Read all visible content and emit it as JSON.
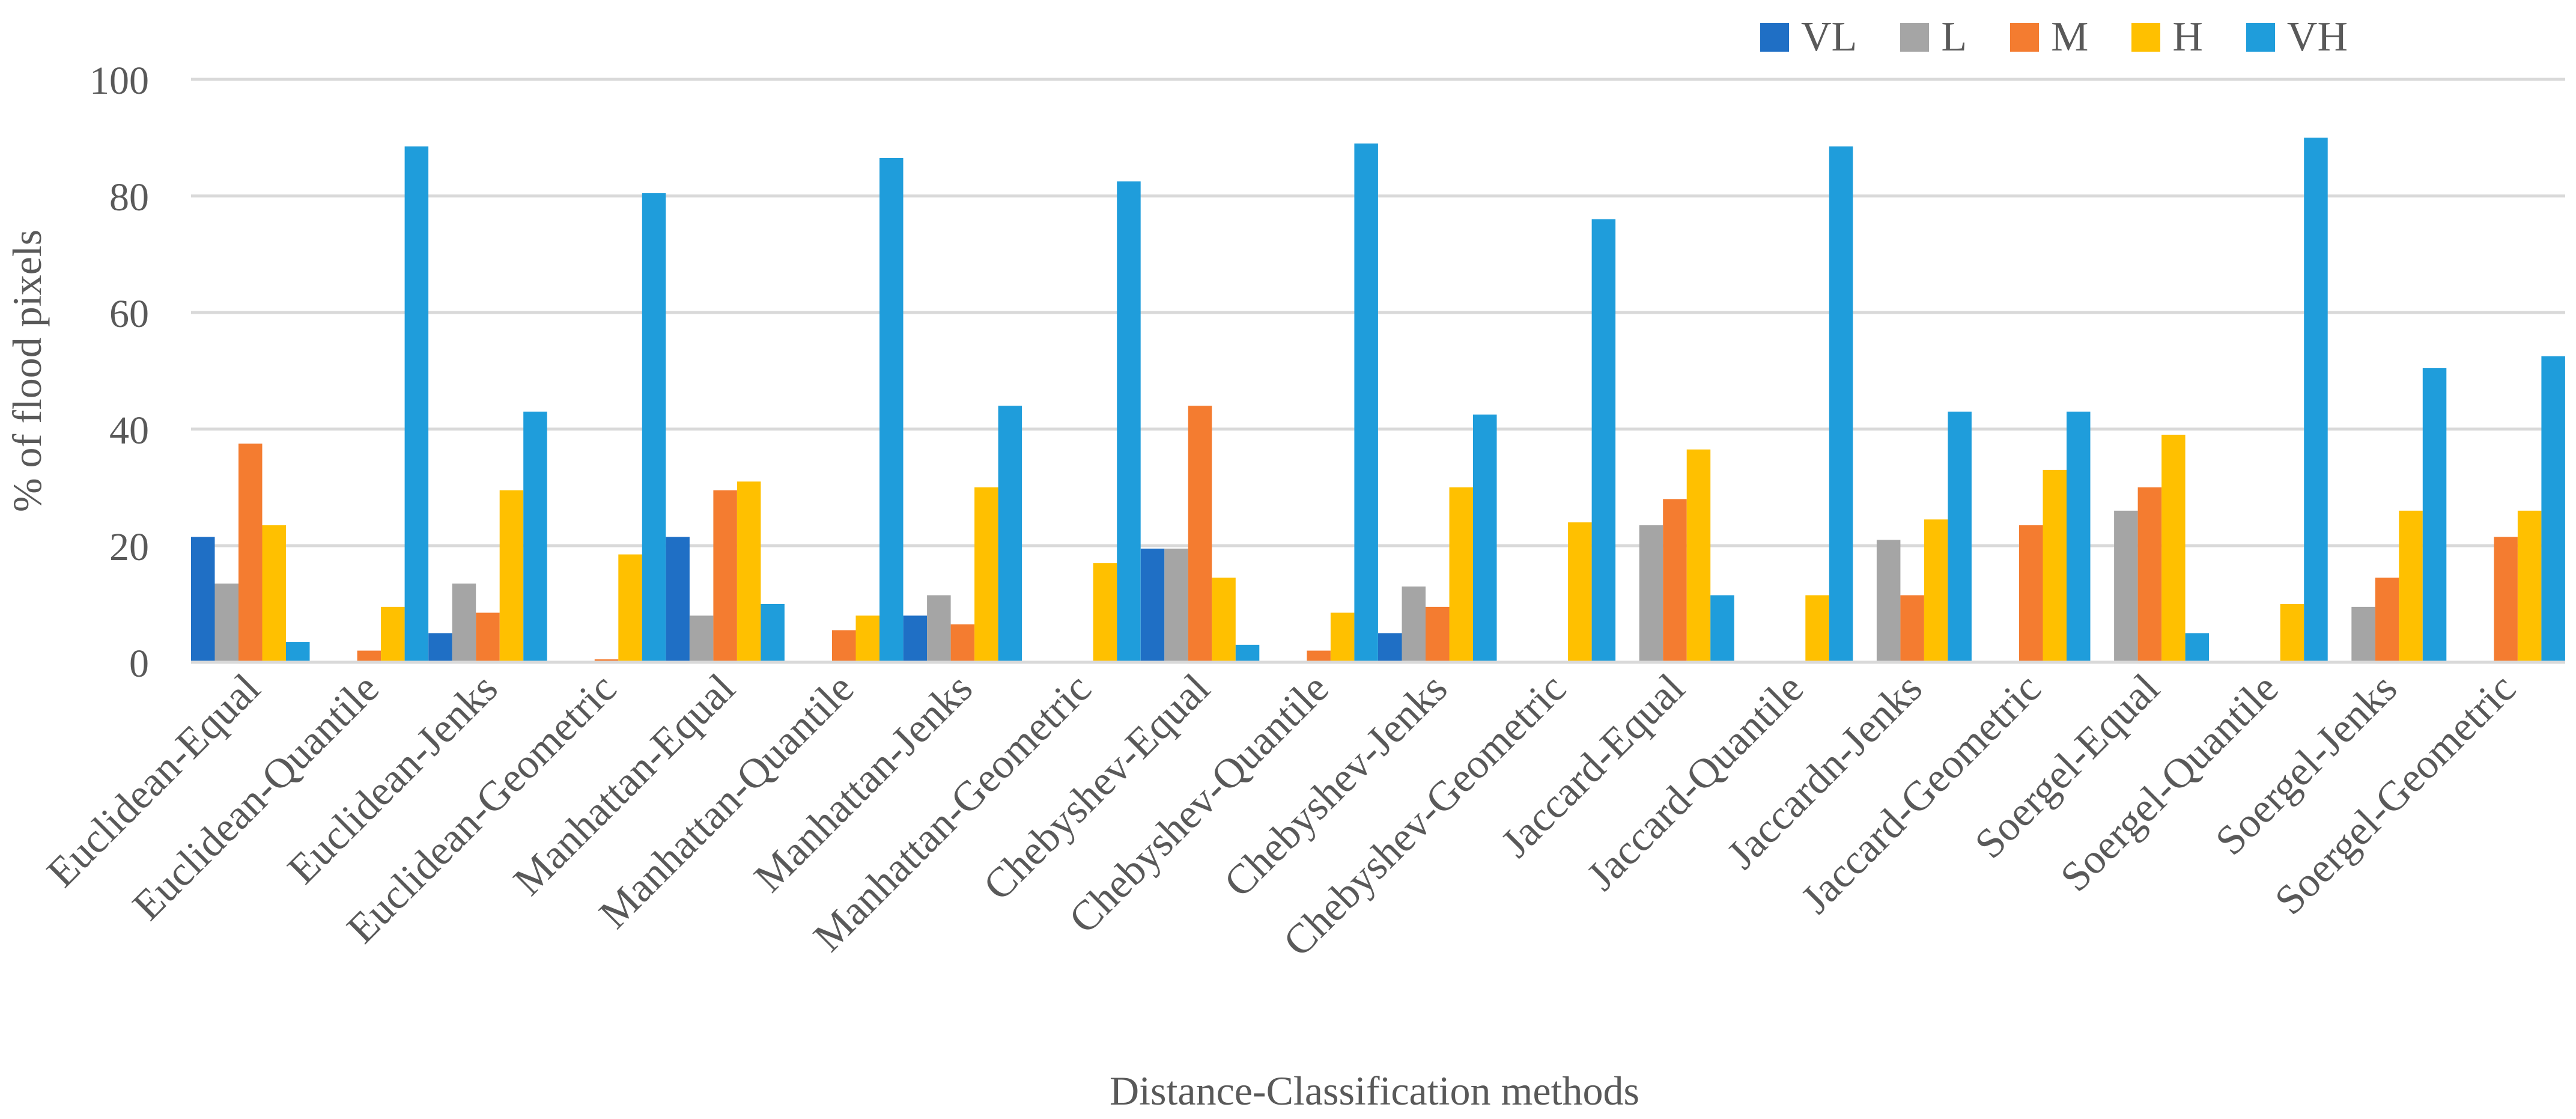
{
  "chart_data": {
    "type": "bar",
    "title": "",
    "xlabel": "Distance-Classification methods",
    "ylabel": "% of flood pixels",
    "ylim": [
      0,
      100
    ],
    "yticks": [
      0,
      20,
      40,
      60,
      80,
      100
    ],
    "grid": true,
    "legend_position": "top-right",
    "categories": [
      "Euclidean-Equal",
      "Euclidean-Quantile",
      "Euclidean-Jenks",
      "Euclidean-Geometric",
      "Manhattan-Equal",
      "Manhattan-Quantile",
      "Manhattan-Jenks",
      "Manhattan-Geometric",
      "Chebyshev-Equal",
      "Chebyshev-Quantile",
      "Chebyshev-Jenks",
      "Chebyshev-Geometric",
      "Jaccard-Equal",
      "Jaccard-Quantile",
      "Jaccardn-Jenks",
      "Jaccard-Geometric",
      "Soergel-Equal",
      "Soergel-Quantile",
      "Soergel-Jenks",
      "Soergel-Geometric"
    ],
    "series": [
      {
        "name": "VL",
        "color": "#1f6fc5",
        "values": [
          21.5,
          0,
          5,
          0,
          21.5,
          0,
          8,
          0,
          19.5,
          0,
          5,
          0,
          0,
          0,
          0,
          0,
          0,
          0,
          0,
          0
        ]
      },
      {
        "name": "L",
        "color": "#a5a5a5",
        "values": [
          13.5,
          0,
          13.5,
          0,
          8,
          0,
          11.5,
          0,
          19.5,
          0,
          13,
          0,
          23.5,
          0,
          21,
          0,
          26,
          0,
          9.5,
          0
        ]
      },
      {
        "name": "M",
        "color": "#f47c30",
        "values": [
          37.5,
          2,
          8.5,
          0.5,
          29.5,
          5.5,
          6.5,
          0,
          44,
          2,
          9.5,
          0,
          28,
          0,
          11.5,
          23.5,
          30,
          0,
          14.5,
          21.5
        ]
      },
      {
        "name": "H",
        "color": "#ffc000",
        "values": [
          23.5,
          9.5,
          29.5,
          18.5,
          31,
          8,
          30,
          17,
          14.5,
          8.5,
          30,
          24,
          36.5,
          11.5,
          24.5,
          33,
          39,
          10,
          26,
          26
        ]
      },
      {
        "name": "VH",
        "color": "#1f9ddb",
        "values": [
          3.5,
          88.5,
          43,
          80.5,
          10,
          86.5,
          44,
          82.5,
          3,
          89,
          42.5,
          76,
          11.5,
          88.5,
          43,
          43,
          5,
          90,
          50.5,
          52.5
        ]
      }
    ]
  }
}
